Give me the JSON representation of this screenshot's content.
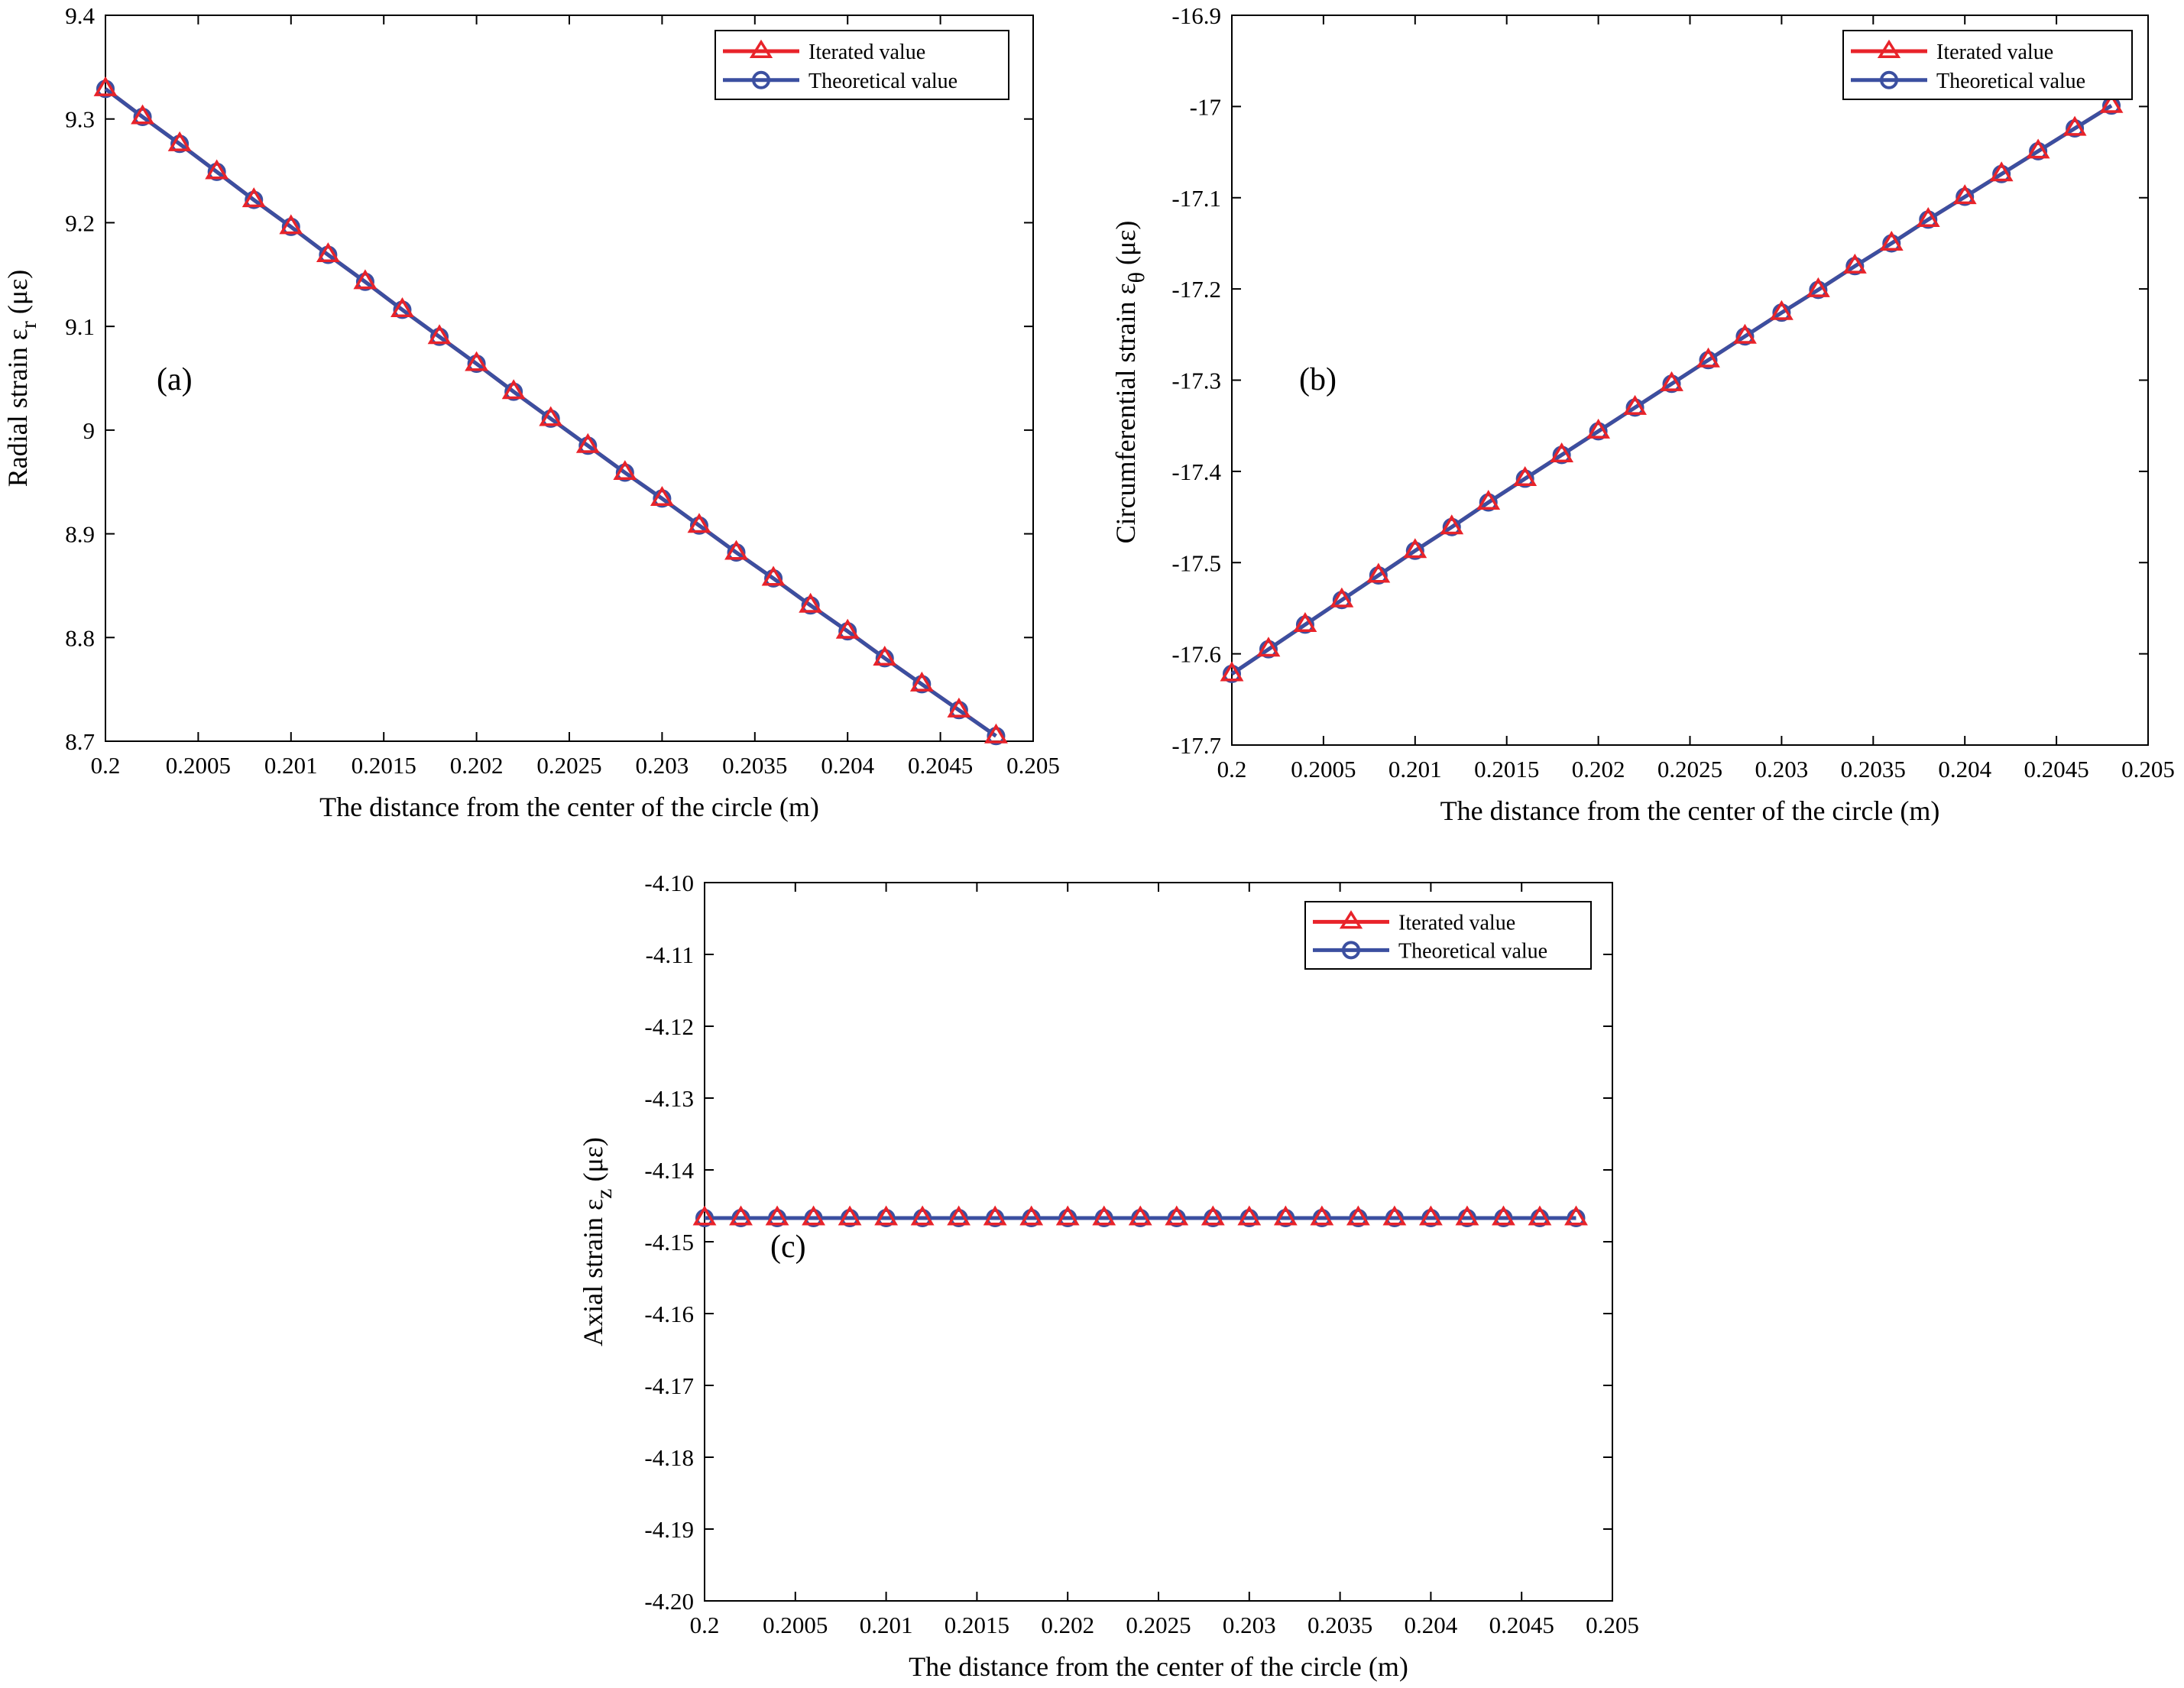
{
  "chart_data": [
    {
      "type": "line",
      "panel_label": "(a)",
      "xlabel": "The distance from the center of the circle (m)",
      "ylabel": {
        "main": "Radial strain ε",
        "sub": "r",
        "unit": " (με)"
      },
      "xlim": [
        0.2,
        0.205
      ],
      "ylim": [
        8.7,
        9.4
      ],
      "xticks": [
        0.2,
        0.2005,
        0.201,
        0.2015,
        0.202,
        0.2025,
        0.203,
        0.2035,
        0.204,
        0.2045,
        0.205
      ],
      "xtick_labels": [
        "0.2",
        "0.2005",
        "0.201",
        "0.2015",
        "0.202",
        "0.2025",
        "0.203",
        "0.2035",
        "0.204",
        "0.2045",
        "0.205"
      ],
      "yticks": [
        8.7,
        8.8,
        8.9,
        9.0,
        9.1,
        9.2,
        9.3,
        9.4
      ],
      "ytick_labels": [
        "8.7",
        "8.8",
        "8.9",
        "9",
        "9.1",
        "9.2",
        "9.3",
        "9.4"
      ],
      "legend_position": "top-right",
      "x": [
        0.2,
        0.2002,
        0.2004,
        0.2006,
        0.2008,
        0.201,
        0.2012,
        0.2014,
        0.2016,
        0.2018,
        0.202,
        0.2022,
        0.2024,
        0.2026,
        0.2028,
        0.203,
        0.2032,
        0.2034,
        0.2036,
        0.2038,
        0.204,
        0.2042,
        0.2044,
        0.2046,
        0.2048
      ],
      "series": [
        {
          "name": "Iterated value",
          "marker": "triangle",
          "color": "#e8232a",
          "values": [
            9.329,
            9.302,
            9.276,
            9.249,
            9.222,
            9.196,
            9.169,
            9.143,
            9.116,
            9.09,
            9.064,
            9.037,
            9.011,
            8.985,
            8.959,
            8.934,
            8.908,
            8.882,
            8.857,
            8.831,
            8.806,
            8.78,
            8.755,
            8.73,
            8.705
          ]
        },
        {
          "name": "Theoretical value",
          "marker": "circle",
          "color": "#3b4fa0",
          "values": [
            9.329,
            9.302,
            9.276,
            9.249,
            9.222,
            9.196,
            9.169,
            9.143,
            9.116,
            9.09,
            9.064,
            9.037,
            9.011,
            8.985,
            8.959,
            8.934,
            8.908,
            8.882,
            8.857,
            8.831,
            8.806,
            8.78,
            8.755,
            8.73,
            8.705
          ]
        }
      ]
    },
    {
      "type": "line",
      "panel_label": "(b)",
      "xlabel": "The distance from the center of the circle (m)",
      "ylabel": {
        "main": "Circumferential strain ε",
        "sub": "θ",
        "unit": " (με)"
      },
      "xlim": [
        0.2,
        0.205
      ],
      "ylim": [
        -17.7,
        -16.9
      ],
      "xticks": [
        0.2,
        0.2005,
        0.201,
        0.2015,
        0.202,
        0.2025,
        0.203,
        0.2035,
        0.204,
        0.2045,
        0.205
      ],
      "xtick_labels": [
        "0.2",
        "0.2005",
        "0.201",
        "0.2015",
        "0.202",
        "0.2025",
        "0.203",
        "0.2035",
        "0.204",
        "0.2045",
        "0.205"
      ],
      "yticks": [
        -17.7,
        -17.6,
        -17.5,
        -17.4,
        -17.3,
        -17.2,
        -17.1,
        -17.0,
        -16.9
      ],
      "ytick_labels": [
        "-17.7",
        "-17.6",
        "-17.5",
        "-17.4",
        "-17.3",
        "-17.2",
        "-17.1",
        "-17",
        "-16.9"
      ],
      "legend_position": "top-right",
      "x": [
        0.2,
        0.2002,
        0.2004,
        0.2006,
        0.2008,
        0.201,
        0.2012,
        0.2014,
        0.2016,
        0.2018,
        0.202,
        0.2022,
        0.2024,
        0.2026,
        0.2028,
        0.203,
        0.2032,
        0.2034,
        0.2036,
        0.2038,
        0.204,
        0.2042,
        0.2044,
        0.2046,
        0.2048
      ],
      "series": [
        {
          "name": "Iterated value",
          "marker": "triangle",
          "color": "#e8232a",
          "values": [
            -17.622,
            -17.595,
            -17.568,
            -17.541,
            -17.514,
            -17.487,
            -17.461,
            -17.434,
            -17.408,
            -17.382,
            -17.356,
            -17.33,
            -17.304,
            -17.278,
            -17.252,
            -17.226,
            -17.201,
            -17.175,
            -17.15,
            -17.124,
            -17.099,
            -17.074,
            -17.049,
            -17.024,
            -16.999
          ]
        },
        {
          "name": "Theoretical value",
          "marker": "circle",
          "color": "#3b4fa0",
          "values": [
            -17.622,
            -17.595,
            -17.568,
            -17.541,
            -17.514,
            -17.487,
            -17.461,
            -17.434,
            -17.408,
            -17.382,
            -17.356,
            -17.33,
            -17.304,
            -17.278,
            -17.252,
            -17.226,
            -17.201,
            -17.175,
            -17.15,
            -17.124,
            -17.099,
            -17.074,
            -17.049,
            -17.024,
            -16.999
          ]
        }
      ]
    },
    {
      "type": "line",
      "panel_label": "(c)",
      "xlabel": "The distance from the center of the circle (m)",
      "ylabel": {
        "main": "Axial strain ε",
        "sub": "z",
        "unit": " (με)"
      },
      "xlim": [
        0.2,
        0.205
      ],
      "ylim": [
        -4.2,
        -4.1
      ],
      "xticks": [
        0.2,
        0.2005,
        0.201,
        0.2015,
        0.202,
        0.2025,
        0.203,
        0.2035,
        0.204,
        0.2045,
        0.205
      ],
      "xtick_labels": [
        "0.2",
        "0.2005",
        "0.201",
        "0.2015",
        "0.202",
        "0.2025",
        "0.203",
        "0.2035",
        "0.204",
        "0.2045",
        "0.205"
      ],
      "yticks": [
        -4.2,
        -4.19,
        -4.18,
        -4.17,
        -4.16,
        -4.15,
        -4.14,
        -4.13,
        -4.12,
        -4.11,
        -4.1
      ],
      "ytick_labels": [
        "-4.20",
        "-4.19",
        "-4.18",
        "-4.17",
        "-4.16",
        "-4.15",
        "-4.14",
        "-4.13",
        "-4.12",
        "-4.11",
        "-4.10"
      ],
      "legend_position": "top-right",
      "x": [
        0.2,
        0.2002,
        0.2004,
        0.2006,
        0.2008,
        0.201,
        0.2012,
        0.2014,
        0.2016,
        0.2018,
        0.202,
        0.2022,
        0.2024,
        0.2026,
        0.2028,
        0.203,
        0.2032,
        0.2034,
        0.2036,
        0.2038,
        0.204,
        0.2042,
        0.2044,
        0.2046,
        0.2048
      ],
      "series": [
        {
          "name": "Iterated value",
          "marker": "triangle",
          "color": "#e8232a",
          "values": [
            -4.1467,
            -4.1467,
            -4.1467,
            -4.1467,
            -4.1467,
            -4.1467,
            -4.1467,
            -4.1467,
            -4.1467,
            -4.1467,
            -4.1467,
            -4.1467,
            -4.1467,
            -4.1467,
            -4.1467,
            -4.1467,
            -4.1467,
            -4.1467,
            -4.1467,
            -4.1467,
            -4.1467,
            -4.1467,
            -4.1467,
            -4.1467,
            -4.1467
          ]
        },
        {
          "name": "Theoretical value",
          "marker": "circle",
          "color": "#3b4fa0",
          "values": [
            -4.1467,
            -4.1467,
            -4.1467,
            -4.1467,
            -4.1467,
            -4.1467,
            -4.1467,
            -4.1467,
            -4.1467,
            -4.1467,
            -4.1467,
            -4.1467,
            -4.1467,
            -4.1467,
            -4.1467,
            -4.1467,
            -4.1467,
            -4.1467,
            -4.1467,
            -4.1467,
            -4.1467,
            -4.1467,
            -4.1467,
            -4.1467,
            -4.1467
          ]
        }
      ]
    }
  ]
}
